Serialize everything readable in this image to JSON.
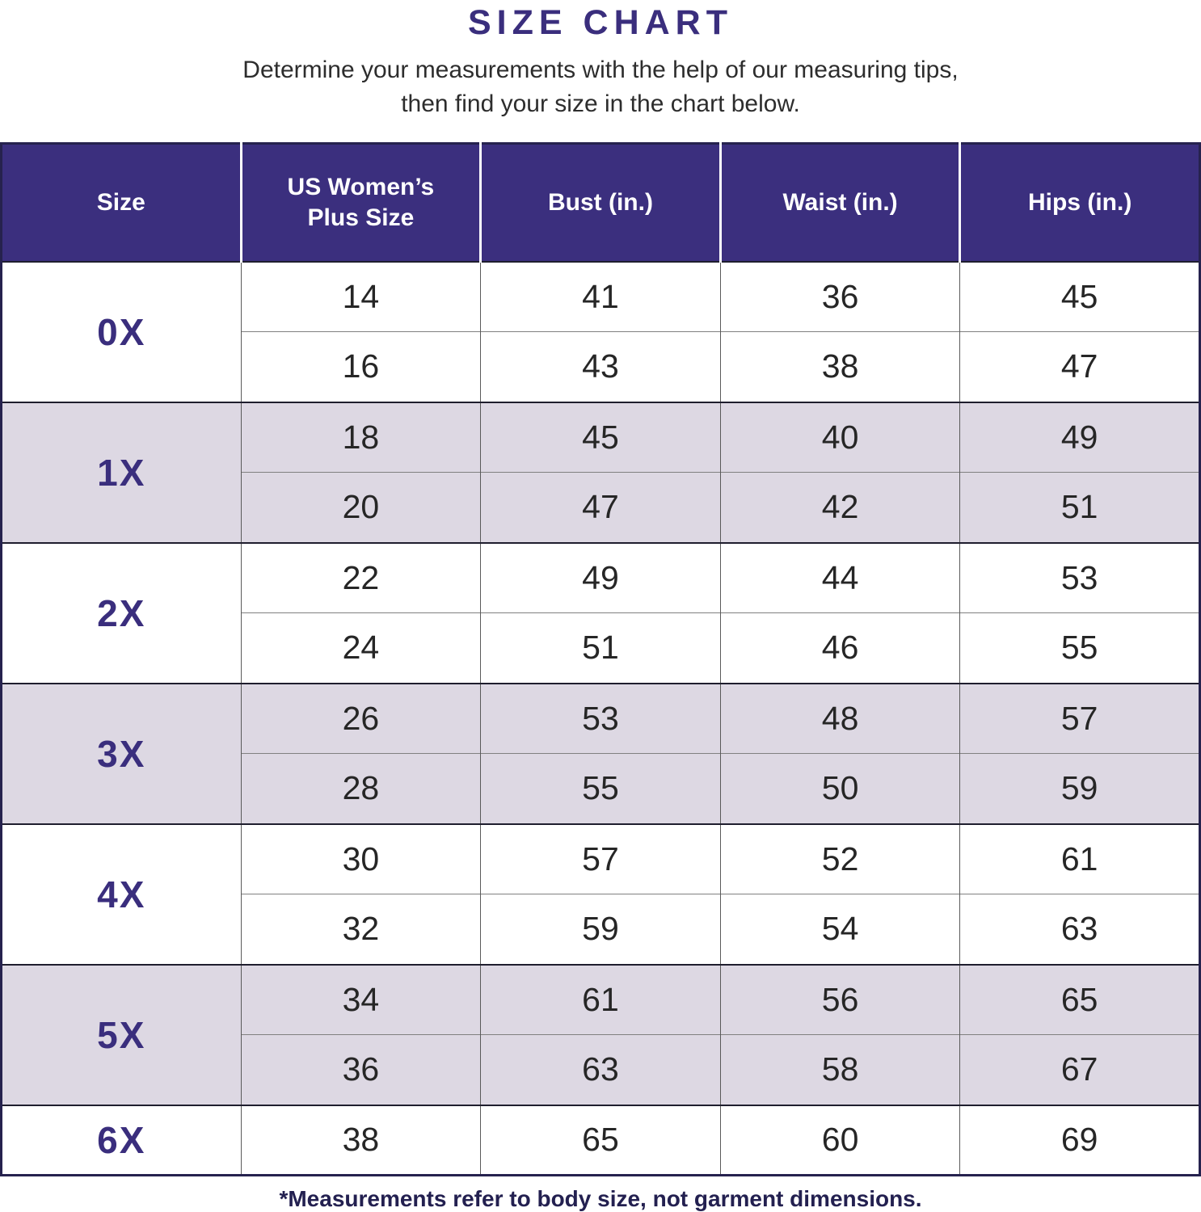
{
  "title": "SIZE CHART",
  "subtitle_line1": "Determine your measurements with the help of our measuring tips,",
  "subtitle_line2": "then find your size in the chart below.",
  "footnote": "*Measurements refer to body size, not garment dimensions.",
  "colors": {
    "header_bg": "#3b2f7e",
    "header_text": "#ffffff",
    "size_label_text": "#3a2e7d",
    "alt_row_bg": "#ddd8e3",
    "row_bg": "#ffffff",
    "body_text": "#262626",
    "title_text": "#3a2e7d",
    "footnote_text": "#232050",
    "outer_border": "#26224e"
  },
  "table": {
    "headers": [
      "Size",
      "US Women’s Plus Size",
      "Bust (in.)",
      "Waist (in.)",
      "Hips (in.)"
    ],
    "groups": [
      {
        "size": "0X",
        "rows": [
          [
            "14",
            "41",
            "36",
            "45"
          ],
          [
            "16",
            "43",
            "38",
            "47"
          ]
        ]
      },
      {
        "size": "1X",
        "rows": [
          [
            "18",
            "45",
            "40",
            "49"
          ],
          [
            "20",
            "47",
            "42",
            "51"
          ]
        ]
      },
      {
        "size": "2X",
        "rows": [
          [
            "22",
            "49",
            "44",
            "53"
          ],
          [
            "24",
            "51",
            "46",
            "55"
          ]
        ]
      },
      {
        "size": "3X",
        "rows": [
          [
            "26",
            "53",
            "48",
            "57"
          ],
          [
            "28",
            "55",
            "50",
            "59"
          ]
        ]
      },
      {
        "size": "4X",
        "rows": [
          [
            "30",
            "57",
            "52",
            "61"
          ],
          [
            "32",
            "59",
            "54",
            "63"
          ]
        ]
      },
      {
        "size": "5X",
        "rows": [
          [
            "34",
            "61",
            "56",
            "65"
          ],
          [
            "36",
            "63",
            "58",
            "67"
          ]
        ]
      },
      {
        "size": "6X",
        "rows": [
          [
            "38",
            "65",
            "60",
            "69"
          ]
        ]
      }
    ]
  },
  "chart_data": {
    "type": "table",
    "title": "SIZE CHART",
    "columns": [
      "Size",
      "US Women’s Plus Size",
      "Bust (in.)",
      "Waist (in.)",
      "Hips (in.)"
    ],
    "rows": [
      [
        "0X",
        14,
        41,
        36,
        45
      ],
      [
        "0X",
        16,
        43,
        38,
        47
      ],
      [
        "1X",
        18,
        45,
        40,
        49
      ],
      [
        "1X",
        20,
        47,
        42,
        51
      ],
      [
        "2X",
        22,
        49,
        44,
        53
      ],
      [
        "2X",
        24,
        51,
        46,
        55
      ],
      [
        "3X",
        26,
        53,
        48,
        57
      ],
      [
        "3X",
        28,
        55,
        50,
        59
      ],
      [
        "4X",
        30,
        57,
        52,
        61
      ],
      [
        "4X",
        32,
        59,
        54,
        63
      ],
      [
        "5X",
        34,
        61,
        56,
        65
      ],
      [
        "5X",
        36,
        63,
        58,
        67
      ],
      [
        "6X",
        38,
        65,
        60,
        69
      ]
    ],
    "note": "*Measurements refer to body size, not garment dimensions."
  }
}
